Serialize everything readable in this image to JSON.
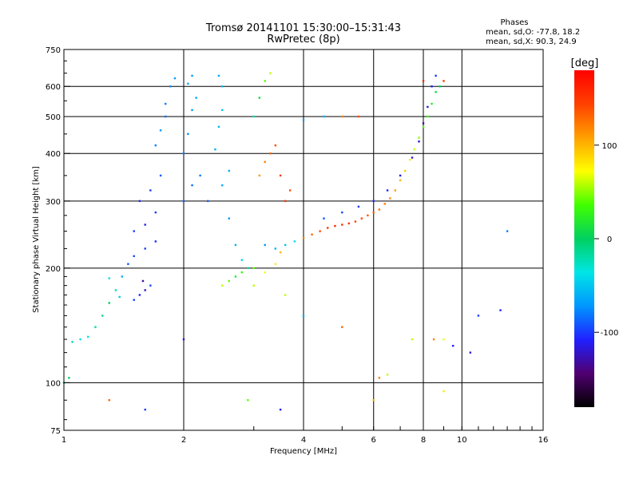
{
  "chart_data": {
    "type": "scatter",
    "title": "Tromsø 20141101 15:30:00–15:31:43",
    "subtitle": "RwPretec (8p)",
    "xlabel": "Frequency [MHz]",
    "ylabel": "Stationary phase Virtual Height [km]",
    "x_scale": "log",
    "y_scale": "log",
    "xlim": [
      1,
      16
    ],
    "ylim": [
      75,
      750
    ],
    "x_ticks": [
      1,
      2,
      4,
      6,
      8,
      10,
      16
    ],
    "x_tick_labels": [
      "1",
      "2",
      "4",
      "6",
      "8",
      "10",
      "16"
    ],
    "y_ticks": [
      75,
      100,
      200,
      300,
      400,
      500,
      600,
      750
    ],
    "y_tick_labels": [
      "75",
      "100",
      "200",
      "300",
      "400",
      "500",
      "600",
      "750"
    ],
    "grid": true,
    "legend": {
      "title": "Phases",
      "lines": [
        "mean, sd,O: -77.8, 18.2",
        "mean, sd,X:  90.3, 24.9"
      ],
      "placement": "top-right"
    },
    "colorbar": {
      "label": "[deg]",
      "range": [
        -180,
        180
      ],
      "ticks": [
        100,
        0,
        -100
      ],
      "tick_labels": [
        "100",
        "0",
        "-100"
      ],
      "colors": [
        "#000000",
        "#500070",
        "#2020ff",
        "#0096ff",
        "#00e5e5",
        "#00d060",
        "#40ff00",
        "#ffff00",
        "#ffa000",
        "#ff4000",
        "#ff0000"
      ]
    },
    "series": [
      {
        "name": "",
        "points": [
          [
            1.0,
            100,
            -10
          ],
          [
            1.03,
            103,
            0
          ],
          [
            1.05,
            128,
            -20
          ],
          [
            1.1,
            130,
            -40
          ],
          [
            1.15,
            132,
            -30
          ],
          [
            1.2,
            140,
            -20
          ],
          [
            1.25,
            150,
            -10
          ],
          [
            1.3,
            162,
            0
          ],
          [
            1.35,
            175,
            -20
          ],
          [
            1.4,
            190,
            -60
          ],
          [
            1.45,
            205,
            -90
          ],
          [
            1.3,
            188,
            -40
          ],
          [
            1.38,
            168,
            -50
          ],
          [
            1.5,
            165,
            -100
          ],
          [
            1.55,
            170,
            -110
          ],
          [
            1.6,
            175,
            -120
          ],
          [
            1.65,
            180,
            -95
          ],
          [
            1.58,
            185,
            -130
          ],
          [
            1.5,
            215,
            -95
          ],
          [
            1.6,
            225,
            -100
          ],
          [
            1.7,
            235,
            -105
          ],
          [
            1.5,
            250,
            -100
          ],
          [
            1.6,
            260,
            -110
          ],
          [
            1.7,
            280,
            -100
          ],
          [
            1.55,
            300,
            -105
          ],
          [
            1.65,
            320,
            -100
          ],
          [
            1.75,
            350,
            -90
          ],
          [
            1.7,
            420,
            -80
          ],
          [
            1.75,
            460,
            -70
          ],
          [
            1.8,
            500,
            -85
          ],
          [
            1.8,
            540,
            -80
          ],
          [
            1.85,
            600,
            -75
          ],
          [
            1.9,
            630,
            -70
          ],
          [
            2.0,
            400,
            -80
          ],
          [
            2.05,
            450,
            -75
          ],
          [
            2.1,
            520,
            -70
          ],
          [
            2.15,
            560,
            -65
          ],
          [
            2.05,
            610,
            -60
          ],
          [
            2.1,
            640,
            -70
          ],
          [
            2.0,
            300,
            -90
          ],
          [
            2.1,
            330,
            -85
          ],
          [
            2.2,
            350,
            -80
          ],
          [
            2.3,
            300,
            -90
          ],
          [
            2.4,
            410,
            -60
          ],
          [
            2.45,
            470,
            -55
          ],
          [
            2.5,
            520,
            -50
          ],
          [
            2.5,
            600,
            -55
          ],
          [
            2.45,
            640,
            -60
          ],
          [
            2.5,
            330,
            -65
          ],
          [
            2.6,
            360,
            -60
          ],
          [
            2.6,
            270,
            -70
          ],
          [
            2.7,
            230,
            -60
          ],
          [
            2.8,
            210,
            -40
          ],
          [
            2.9,
            200,
            -20
          ],
          [
            3.0,
            200,
            40
          ],
          [
            2.5,
            180,
            60
          ],
          [
            2.6,
            185,
            40
          ],
          [
            2.7,
            190,
            20
          ],
          [
            2.8,
            195,
            30
          ],
          [
            3.0,
            180,
            60
          ],
          [
            3.2,
            195,
            70
          ],
          [
            3.4,
            205,
            80
          ],
          [
            3.5,
            220,
            100
          ],
          [
            3.1,
            350,
            110
          ],
          [
            3.2,
            380,
            120
          ],
          [
            3.3,
            400,
            130
          ],
          [
            3.4,
            420,
            140
          ],
          [
            3.5,
            350,
            150
          ],
          [
            3.6,
            300,
            150
          ],
          [
            3.7,
            320,
            140
          ],
          [
            3.0,
            500,
            -20
          ],
          [
            3.1,
            560,
            10
          ],
          [
            3.2,
            620,
            40
          ],
          [
            3.3,
            650,
            60
          ],
          [
            3.2,
            230,
            -70
          ],
          [
            3.4,
            225,
            -60
          ],
          [
            3.6,
            230,
            -50
          ],
          [
            3.8,
            235,
            -40
          ],
          [
            4.0,
            240,
            120
          ],
          [
            4.2,
            245,
            130
          ],
          [
            4.4,
            250,
            140
          ],
          [
            4.6,
            255,
            150
          ],
          [
            4.8,
            258,
            160
          ],
          [
            5.0,
            260,
            155
          ],
          [
            5.2,
            262,
            150
          ],
          [
            5.4,
            265,
            145
          ],
          [
            5.6,
            270,
            140
          ],
          [
            5.8,
            275,
            135
          ],
          [
            6.0,
            280,
            130
          ],
          [
            6.2,
            285,
            125
          ],
          [
            6.4,
            295,
            120
          ],
          [
            6.6,
            305,
            115
          ],
          [
            6.8,
            320,
            110
          ],
          [
            7.0,
            340,
            100
          ],
          [
            7.2,
            360,
            90
          ],
          [
            7.4,
            385,
            80
          ],
          [
            7.6,
            410,
            60
          ],
          [
            7.8,
            440,
            50
          ],
          [
            8.0,
            470,
            40
          ],
          [
            8.2,
            500,
            30
          ],
          [
            8.4,
            540,
            20
          ],
          [
            8.6,
            580,
            10
          ],
          [
            8.8,
            600,
            0
          ],
          [
            4.5,
            270,
            -90
          ],
          [
            5.0,
            280,
            -95
          ],
          [
            5.5,
            290,
            -100
          ],
          [
            6.0,
            300,
            -105
          ],
          [
            6.5,
            320,
            -110
          ],
          [
            7.0,
            350,
            -115
          ],
          [
            7.5,
            390,
            -120
          ],
          [
            7.8,
            430,
            -125
          ],
          [
            8.0,
            480,
            -130
          ],
          [
            8.2,
            530,
            -120
          ],
          [
            8.4,
            600,
            -110
          ],
          [
            8.6,
            640,
            -100
          ],
          [
            4.0,
            490,
            -70
          ],
          [
            4.5,
            500,
            -60
          ],
          [
            5.0,
            500,
            120
          ],
          [
            5.5,
            500,
            140
          ],
          [
            3.6,
            170,
            60
          ],
          [
            4.0,
            150,
            -60
          ],
          [
            5.0,
            140,
            130
          ],
          [
            6.2,
            103,
            120
          ],
          [
            6.5,
            105,
            60
          ],
          [
            7.5,
            130,
            60
          ],
          [
            8.5,
            130,
            120
          ],
          [
            9.5,
            125,
            -110
          ],
          [
            11.0,
            150,
            -100
          ],
          [
            12.5,
            155,
            -110
          ],
          [
            13.0,
            250,
            -80
          ],
          [
            10.5,
            120,
            -120
          ],
          [
            8.0,
            620,
            160
          ],
          [
            9.0,
            620,
            150
          ],
          [
            9.0,
            95,
            80
          ],
          [
            1.6,
            85,
            -100
          ],
          [
            2.0,
            130,
            -120
          ],
          [
            3.5,
            85,
            -110
          ],
          [
            1.3,
            90,
            130
          ],
          [
            2.9,
            90,
            40
          ],
          [
            6.0,
            90,
            100
          ],
          [
            9.0,
            130,
            70
          ]
        ]
      }
    ]
  }
}
